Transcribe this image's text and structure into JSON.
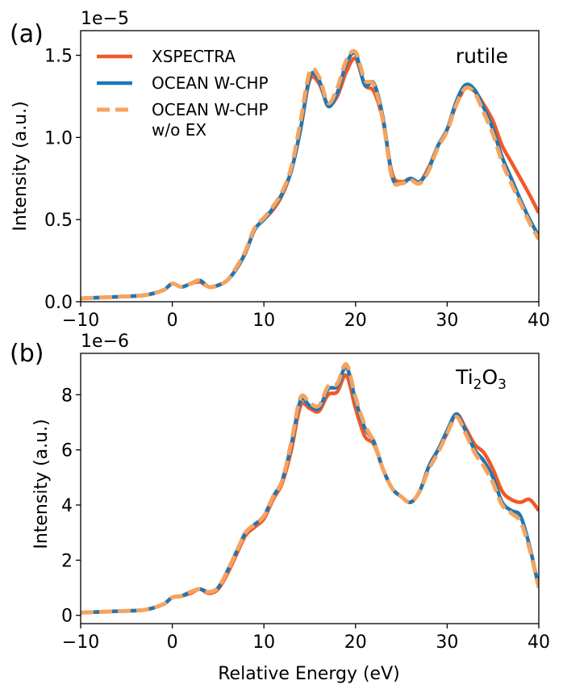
{
  "figure": {
    "xlabel": "Relative Energy (eV)"
  },
  "legend": {
    "entries": [
      {
        "label": "XSPECTRA",
        "color": "#f05a28",
        "style": "solid"
      },
      {
        "label": "OCEAN W-CHP",
        "color": "#1f77b4",
        "style": "solid"
      },
      {
        "label": "OCEAN W-CHP\nw/o EX",
        "color": "#f4a460",
        "style": "dashed"
      }
    ]
  },
  "chart_data": [
    {
      "type": "line",
      "panel_label": "(a)",
      "annotation": "rutile",
      "offset_text": "1e−5",
      "xlabel": "",
      "ylabel": "Intensity (a.u.)",
      "xlim": [
        -10,
        40
      ],
      "ylim": [
        0,
        1.65
      ],
      "xticks": [
        -10,
        0,
        10,
        20,
        30,
        40
      ],
      "xticklabels": [
        "−10",
        "0",
        "10",
        "20",
        "30",
        "40"
      ],
      "yticks": [
        0.0,
        0.5,
        1.0,
        1.5
      ],
      "yticklabels": [
        "0.0",
        "0.5",
        "1.0",
        "1.5"
      ],
      "grid": false,
      "legend_position": "upper-left",
      "series": [
        {
          "name": "XSPECTRA",
          "color": "#f05a28",
          "style": "solid",
          "x": [
            -10,
            -6,
            -3,
            -1,
            0,
            1,
            2,
            3,
            4,
            5,
            6,
            7,
            8,
            9,
            10,
            11,
            12,
            13,
            14,
            15,
            16,
            17,
            18,
            19,
            20,
            21,
            22,
            23,
            24,
            25,
            26,
            27,
            28,
            29,
            30,
            31,
            32,
            33,
            34,
            35,
            36,
            37,
            38,
            39,
            40
          ],
          "y": [
            0.02,
            0.03,
            0.04,
            0.07,
            0.11,
            0.09,
            0.11,
            0.12,
            0.09,
            0.1,
            0.13,
            0.2,
            0.3,
            0.44,
            0.5,
            0.56,
            0.65,
            0.8,
            1.05,
            1.35,
            1.33,
            1.2,
            1.25,
            1.4,
            1.48,
            1.32,
            1.28,
            1.1,
            0.78,
            0.73,
            0.75,
            0.73,
            0.82,
            0.95,
            1.05,
            1.2,
            1.3,
            1.28,
            1.2,
            1.1,
            0.95,
            0.85,
            0.75,
            0.65,
            0.54
          ]
        },
        {
          "name": "OCEAN W-CHP",
          "color": "#1f77b4",
          "style": "solid",
          "x": [
            -10,
            -6,
            -3,
            -1,
            0,
            1,
            2,
            3,
            4,
            5,
            6,
            7,
            8,
            9,
            10,
            11,
            12,
            13,
            14,
            15,
            16,
            17,
            18,
            19,
            20,
            21,
            22,
            23,
            24,
            25,
            26,
            27,
            28,
            29,
            30,
            31,
            32,
            33,
            34,
            35,
            36,
            37,
            38,
            39,
            40
          ],
          "y": [
            0.02,
            0.03,
            0.04,
            0.07,
            0.11,
            0.09,
            0.11,
            0.13,
            0.09,
            0.1,
            0.13,
            0.2,
            0.3,
            0.44,
            0.5,
            0.57,
            0.66,
            0.8,
            1.05,
            1.37,
            1.35,
            1.19,
            1.27,
            1.45,
            1.51,
            1.32,
            1.33,
            1.12,
            0.76,
            0.72,
            0.75,
            0.73,
            0.81,
            0.95,
            1.05,
            1.22,
            1.32,
            1.29,
            1.18,
            1.05,
            0.88,
            0.75,
            0.62,
            0.5,
            0.4
          ]
        },
        {
          "name": "OCEAN W-CHP\nw/o EX",
          "color": "#f4a460",
          "style": "dashed",
          "x": [
            -10,
            -6,
            -3,
            -1,
            0,
            1,
            2,
            3,
            4,
            5,
            6,
            7,
            8,
            9,
            10,
            11,
            12,
            13,
            14,
            15,
            16,
            17,
            18,
            19,
            20,
            21,
            22,
            23,
            24,
            25,
            26,
            27,
            28,
            29,
            30,
            31,
            32,
            33,
            34,
            35,
            36,
            37,
            38,
            39,
            40
          ],
          "y": [
            0.02,
            0.03,
            0.04,
            0.07,
            0.11,
            0.09,
            0.11,
            0.13,
            0.09,
            0.1,
            0.13,
            0.21,
            0.31,
            0.45,
            0.51,
            0.58,
            0.67,
            0.82,
            1.1,
            1.4,
            1.37,
            1.21,
            1.3,
            1.47,
            1.52,
            1.35,
            1.32,
            1.1,
            0.75,
            0.72,
            0.74,
            0.72,
            0.8,
            0.94,
            1.04,
            1.2,
            1.3,
            1.27,
            1.15,
            1.02,
            0.85,
            0.72,
            0.6,
            0.48,
            0.38
          ]
        }
      ]
    },
    {
      "type": "line",
      "panel_label": "(b)",
      "annotation": "Ti2O3",
      "offset_text": "1e−6",
      "xlabel": "Relative Energy (eV)",
      "ylabel": "Intensity (a.u.)",
      "xlim": [
        -10,
        40
      ],
      "ylim": [
        -0.3,
        9.5
      ],
      "xticks": [
        -10,
        0,
        10,
        20,
        30,
        40
      ],
      "xticklabels": [
        "−10",
        "0",
        "10",
        "20",
        "30",
        "40"
      ],
      "yticks": [
        0,
        2,
        4,
        6,
        8
      ],
      "yticklabels": [
        "0",
        "2",
        "4",
        "6",
        "8"
      ],
      "grid": false,
      "legend_position": "none",
      "series": [
        {
          "name": "XSPECTRA",
          "color": "#f05a28",
          "style": "solid",
          "x": [
            -10,
            -6,
            -3,
            -1,
            0,
            1,
            2,
            3,
            4,
            5,
            6,
            7,
            8,
            9,
            10,
            11,
            12,
            13,
            14,
            15,
            16,
            17,
            18,
            19,
            20,
            21,
            22,
            23,
            24,
            25,
            26,
            27,
            28,
            29,
            30,
            31,
            32,
            33,
            34,
            35,
            36,
            37,
            38,
            39,
            40
          ],
          "y": [
            0.1,
            0.15,
            0.2,
            0.4,
            0.65,
            0.7,
            0.8,
            0.95,
            0.8,
            0.95,
            1.5,
            2.2,
            2.9,
            3.2,
            3.5,
            4.2,
            4.8,
            6.0,
            7.6,
            7.5,
            7.4,
            8.0,
            8.1,
            8.7,
            7.5,
            6.5,
            6.2,
            5.3,
            4.6,
            4.3,
            4.1,
            4.5,
            5.4,
            6.0,
            6.6,
            7.3,
            6.8,
            6.2,
            5.9,
            5.3,
            4.5,
            4.2,
            4.1,
            4.2,
            3.8
          ]
        },
        {
          "name": "OCEAN W-CHP",
          "color": "#1f77b4",
          "style": "solid",
          "x": [
            -10,
            -6,
            -3,
            -1,
            0,
            1,
            2,
            3,
            4,
            5,
            6,
            7,
            8,
            9,
            10,
            11,
            12,
            13,
            14,
            15,
            16,
            17,
            18,
            19,
            20,
            21,
            22,
            23,
            24,
            25,
            26,
            27,
            28,
            29,
            30,
            31,
            32,
            33,
            34,
            35,
            36,
            37,
            38,
            39,
            40
          ],
          "y": [
            0.1,
            0.15,
            0.2,
            0.4,
            0.65,
            0.7,
            0.85,
            0.95,
            0.85,
            1.0,
            1.6,
            2.3,
            3.0,
            3.3,
            3.6,
            4.3,
            4.9,
            6.2,
            7.8,
            7.6,
            7.5,
            8.2,
            8.3,
            9.0,
            7.8,
            6.8,
            6.3,
            5.3,
            4.6,
            4.3,
            4.1,
            4.5,
            5.4,
            6.0,
            6.7,
            7.3,
            6.7,
            6.0,
            5.6,
            5.0,
            4.1,
            3.8,
            3.6,
            2.5,
            1.0
          ]
        },
        {
          "name": "OCEAN W-CHP\nw/o EX",
          "color": "#f4a460",
          "style": "dashed",
          "x": [
            -10,
            -6,
            -3,
            -1,
            0,
            1,
            2,
            3,
            4,
            5,
            6,
            7,
            8,
            9,
            10,
            11,
            12,
            13,
            14,
            15,
            16,
            17,
            18,
            19,
            20,
            21,
            22,
            23,
            24,
            25,
            26,
            27,
            28,
            29,
            30,
            31,
            32,
            33,
            34,
            35,
            36,
            37,
            38,
            39,
            40
          ],
          "y": [
            0.1,
            0.15,
            0.2,
            0.4,
            0.65,
            0.7,
            0.85,
            0.95,
            0.85,
            1.0,
            1.6,
            2.3,
            3.0,
            3.3,
            3.6,
            4.3,
            4.9,
            6.3,
            7.9,
            7.7,
            7.6,
            8.3,
            8.4,
            9.1,
            7.9,
            6.9,
            6.3,
            5.3,
            4.6,
            4.3,
            4.1,
            4.5,
            5.3,
            5.9,
            6.6,
            7.2,
            6.6,
            5.9,
            5.4,
            4.8,
            4.0,
            3.7,
            3.4,
            2.4,
            1.0
          ]
        }
      ]
    }
  ]
}
